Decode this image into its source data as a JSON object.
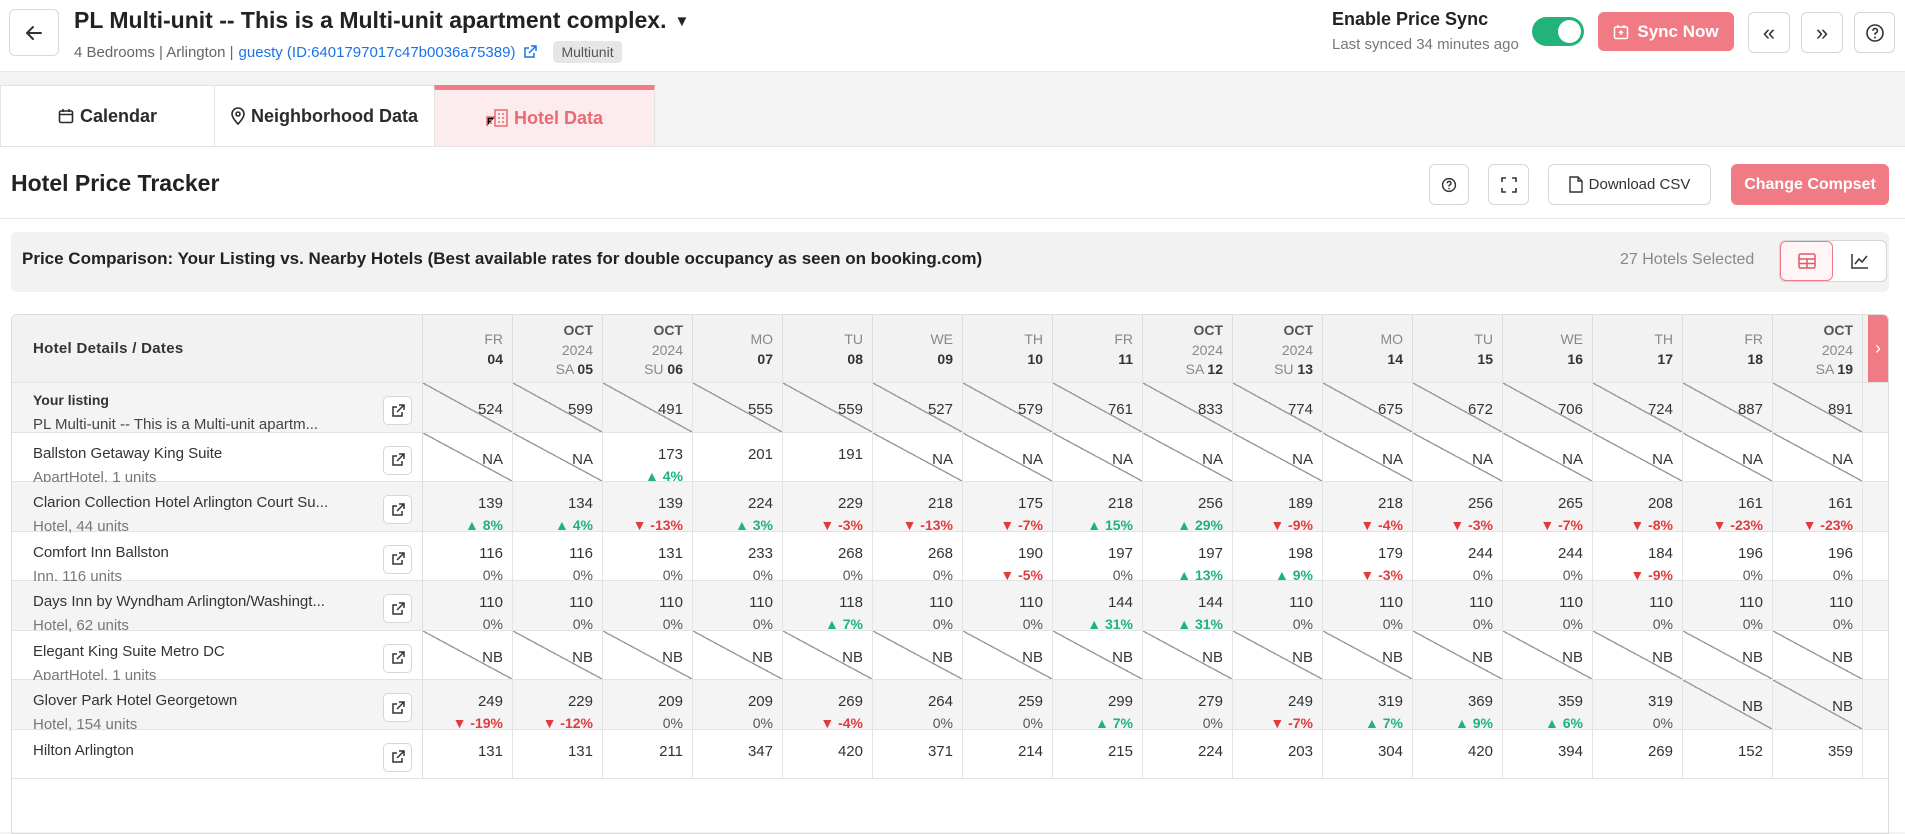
{
  "header": {
    "title": "PL Multi-unit -- This is a Multi-unit apartment complex.",
    "meta": "4 Bedrooms | Arlington |",
    "link": "guesty (ID:6401797017c47b0036a75389)",
    "badge": "Multiunit",
    "sync_label": "Enable Price Sync",
    "sync_time": "Last synced 34 minutes ago",
    "sync_button": "Sync Now",
    "toggle_on": true
  },
  "tabs": [
    {
      "label": "Calendar",
      "icon": "calendar-icon"
    },
    {
      "label": "Neighborhood Data",
      "icon": "map-pin-icon"
    },
    {
      "label": "Hotel Data",
      "icon": "hotel-icon",
      "active": true
    }
  ],
  "panel": {
    "title": "Hotel Price Tracker",
    "download_label": "Download CSV",
    "compset_label": "Change Compset",
    "comparison_text": "Price Comparison: Your Listing vs. Nearby Hotels (Best available rates for double occupancy as seen on booking.com)",
    "hotels_selected": "27 Hotels Selected"
  },
  "table": {
    "details_header": "Hotel Details / Dates",
    "dates": [
      {
        "month": "",
        "year": "",
        "dow": "FR",
        "day": "04"
      },
      {
        "month": "OCT",
        "year": "2024",
        "dow": "SA",
        "day": "05"
      },
      {
        "month": "OCT",
        "year": "2024",
        "dow": "SU",
        "day": "06"
      },
      {
        "month": "",
        "year": "",
        "dow": "MO",
        "day": "07"
      },
      {
        "month": "",
        "year": "",
        "dow": "TU",
        "day": "08"
      },
      {
        "month": "",
        "year": "",
        "dow": "WE",
        "day": "09"
      },
      {
        "month": "",
        "year": "",
        "dow": "TH",
        "day": "10"
      },
      {
        "month": "",
        "year": "",
        "dow": "FR",
        "day": "11"
      },
      {
        "month": "OCT",
        "year": "2024",
        "dow": "SA",
        "day": "12"
      },
      {
        "month": "OCT",
        "year": "2024",
        "dow": "SU",
        "day": "13"
      },
      {
        "month": "",
        "year": "",
        "dow": "MO",
        "day": "14"
      },
      {
        "month": "",
        "year": "",
        "dow": "TU",
        "day": "15"
      },
      {
        "month": "",
        "year": "",
        "dow": "WE",
        "day": "16"
      },
      {
        "month": "",
        "year": "",
        "dow": "TH",
        "day": "17"
      },
      {
        "month": "",
        "year": "",
        "dow": "FR",
        "day": "18"
      },
      {
        "month": "OCT",
        "year": "2024",
        "dow": "SA",
        "day": "19"
      }
    ],
    "rows": [
      {
        "name": "Your listing",
        "sub": "PL Multi-unit -- This is a Multi-unit apartm...",
        "own": true,
        "cells": [
          [
            "524",
            ""
          ],
          [
            "599",
            ""
          ],
          [
            "491",
            ""
          ],
          [
            "555",
            ""
          ],
          [
            "559",
            ""
          ],
          [
            "527",
            ""
          ],
          [
            "579",
            ""
          ],
          [
            "761",
            ""
          ],
          [
            "833",
            ""
          ],
          [
            "774",
            ""
          ],
          [
            "675",
            ""
          ],
          [
            "672",
            ""
          ],
          [
            "706",
            ""
          ],
          [
            "724",
            ""
          ],
          [
            "887",
            ""
          ],
          [
            "891",
            ""
          ]
        ]
      },
      {
        "name": "Ballston Getaway King Suite",
        "sub": "ApartHotel, 1 units",
        "cells": [
          [
            "NA",
            ""
          ],
          [
            "NA",
            ""
          ],
          [
            "173",
            "▲ 4%"
          ],
          [
            "201",
            ""
          ],
          [
            "191",
            ""
          ],
          [
            "NA",
            ""
          ],
          [
            "NA",
            ""
          ],
          [
            "NA",
            ""
          ],
          [
            "NA",
            ""
          ],
          [
            "NA",
            ""
          ],
          [
            "NA",
            ""
          ],
          [
            "NA",
            ""
          ],
          [
            "NA",
            ""
          ],
          [
            "NA",
            ""
          ],
          [
            "NA",
            ""
          ],
          [
            "NA",
            ""
          ]
        ]
      },
      {
        "name": "Clarion Collection Hotel Arlington Court Su...",
        "sub": "Hotel, 44 units",
        "cells": [
          [
            "139",
            "▲ 8%"
          ],
          [
            "134",
            "▲ 4%"
          ],
          [
            "139",
            "▼ -13%"
          ],
          [
            "224",
            "▲ 3%"
          ],
          [
            "229",
            "▼ -3%"
          ],
          [
            "218",
            "▼ -13%"
          ],
          [
            "175",
            "▼ -7%"
          ],
          [
            "218",
            "▲ 15%"
          ],
          [
            "256",
            "▲ 29%"
          ],
          [
            "189",
            "▼ -9%"
          ],
          [
            "218",
            "▼ -4%"
          ],
          [
            "256",
            "▼ -3%"
          ],
          [
            "265",
            "▼ -7%"
          ],
          [
            "208",
            "▼ -8%"
          ],
          [
            "161",
            "▼ -23%"
          ],
          [
            "161",
            "▼ -23%"
          ]
        ]
      },
      {
        "name": "Comfort Inn Ballston",
        "sub": "Inn, 116 units",
        "cells": [
          [
            "116",
            "0%"
          ],
          [
            "116",
            "0%"
          ],
          [
            "131",
            "0%"
          ],
          [
            "233",
            "0%"
          ],
          [
            "268",
            "0%"
          ],
          [
            "268",
            "0%"
          ],
          [
            "190",
            "▼ -5%"
          ],
          [
            "197",
            "0%"
          ],
          [
            "197",
            "▲ 13%"
          ],
          [
            "198",
            "▲ 9%"
          ],
          [
            "179",
            "▼ -3%"
          ],
          [
            "244",
            "0%"
          ],
          [
            "244",
            "0%"
          ],
          [
            "184",
            "▼ -9%"
          ],
          [
            "196",
            "0%"
          ],
          [
            "196",
            "0%"
          ]
        ]
      },
      {
        "name": "Days Inn by Wyndham Arlington/Washingt...",
        "sub": "Hotel, 62 units",
        "cells": [
          [
            "110",
            "0%"
          ],
          [
            "110",
            "0%"
          ],
          [
            "110",
            "0%"
          ],
          [
            "110",
            "0%"
          ],
          [
            "118",
            "▲ 7%"
          ],
          [
            "110",
            "0%"
          ],
          [
            "110",
            "0%"
          ],
          [
            "144",
            "▲ 31%"
          ],
          [
            "144",
            "▲ 31%"
          ],
          [
            "110",
            "0%"
          ],
          [
            "110",
            "0%"
          ],
          [
            "110",
            "0%"
          ],
          [
            "110",
            "0%"
          ],
          [
            "110",
            "0%"
          ],
          [
            "110",
            "0%"
          ],
          [
            "110",
            "0%"
          ]
        ]
      },
      {
        "name": "Elegant King Suite Metro DC",
        "sub": "ApartHotel, 1 units",
        "cells": [
          [
            "NB",
            ""
          ],
          [
            "NB",
            ""
          ],
          [
            "NB",
            ""
          ],
          [
            "NB",
            ""
          ],
          [
            "NB",
            ""
          ],
          [
            "NB",
            ""
          ],
          [
            "NB",
            ""
          ],
          [
            "NB",
            ""
          ],
          [
            "NB",
            ""
          ],
          [
            "NB",
            ""
          ],
          [
            "NB",
            ""
          ],
          [
            "NB",
            ""
          ],
          [
            "NB",
            ""
          ],
          [
            "NB",
            ""
          ],
          [
            "NB",
            ""
          ],
          [
            "NB",
            ""
          ]
        ]
      },
      {
        "name": "Glover Park Hotel Georgetown",
        "sub": "Hotel, 154 units",
        "cells": [
          [
            "249",
            "▼ -19%"
          ],
          [
            "229",
            "▼ -12%"
          ],
          [
            "209",
            "0%"
          ],
          [
            "209",
            "0%"
          ],
          [
            "269",
            "▼ -4%"
          ],
          [
            "264",
            "0%"
          ],
          [
            "259",
            "0%"
          ],
          [
            "299",
            "▲ 7%"
          ],
          [
            "279",
            "0%"
          ],
          [
            "249",
            "▼ -7%"
          ],
          [
            "319",
            "▲ 7%"
          ],
          [
            "369",
            "▲ 9%"
          ],
          [
            "359",
            "▲ 6%"
          ],
          [
            "319",
            "0%"
          ],
          [
            "NB",
            ""
          ],
          [
            "NB",
            ""
          ]
        ]
      },
      {
        "name": "Hilton Arlington",
        "sub": "",
        "cells": [
          [
            "131",
            ""
          ],
          [
            "131",
            ""
          ],
          [
            "211",
            ""
          ],
          [
            "347",
            ""
          ],
          [
            "420",
            ""
          ],
          [
            "371",
            ""
          ],
          [
            "214",
            ""
          ],
          [
            "215",
            ""
          ],
          [
            "224",
            ""
          ],
          [
            "203",
            ""
          ],
          [
            "304",
            ""
          ],
          [
            "420",
            ""
          ],
          [
            "394",
            ""
          ],
          [
            "269",
            ""
          ],
          [
            "152",
            ""
          ],
          [
            "359",
            ""
          ]
        ]
      }
    ]
  }
}
